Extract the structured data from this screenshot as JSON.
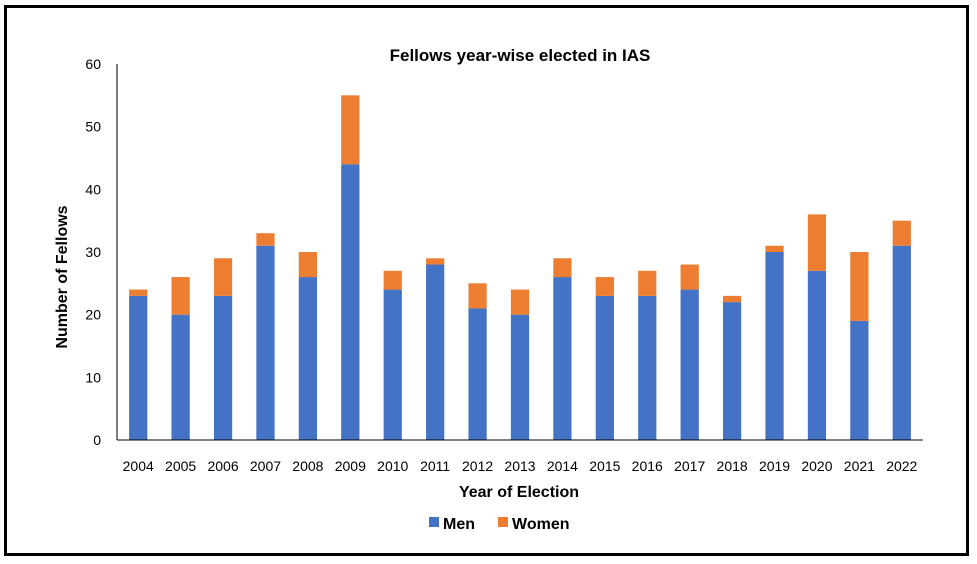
{
  "chart_data": {
    "type": "bar",
    "stacked": true,
    "title": "Fellows year-wise elected in IAS",
    "xlabel": "Year of Election",
    "ylabel": "Number of Fellows",
    "ylim": [
      0,
      60
    ],
    "yticks": [
      "0",
      "10",
      "20",
      "30",
      "40",
      "50",
      "60"
    ],
    "grid": false,
    "legend_position": "bottom",
    "categories": [
      "2004",
      "2005",
      "2006",
      "2007",
      "2008",
      "2009",
      "2010",
      "2011",
      "2012",
      "2013",
      "2014",
      "2015",
      "2016",
      "2017",
      "2018",
      "2019",
      "2020",
      "2021",
      "2022"
    ],
    "series": [
      {
        "name": "Men",
        "color": "#4472C4",
        "values": [
          23,
          20,
          23,
          31,
          26,
          44,
          24,
          28,
          21,
          20,
          26,
          23,
          23,
          24,
          22,
          30,
          27,
          19,
          31
        ]
      },
      {
        "name": "Women",
        "color": "#ED7D31",
        "values": [
          1,
          6,
          6,
          2,
          4,
          11,
          3,
          1,
          4,
          4,
          3,
          3,
          4,
          4,
          1,
          1,
          9,
          11,
          4
        ]
      }
    ]
  }
}
